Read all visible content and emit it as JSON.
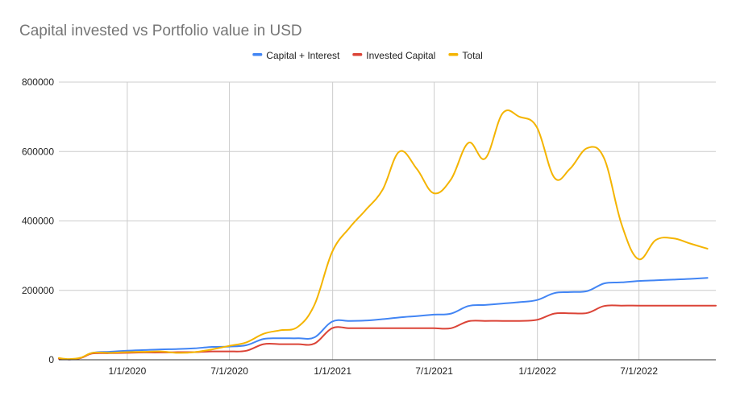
{
  "chart_data": {
    "type": "line",
    "title": "Capital invested vs Portfolio value in USD",
    "xlabel": "",
    "ylabel": "",
    "x_range": [
      "2019-09-01",
      "2022-11-15"
    ],
    "ylim": [
      0,
      800000
    ],
    "y_ticks": [
      {
        "value": 0,
        "label": "0"
      },
      {
        "value": 200000,
        "label": "200000"
      },
      {
        "value": 400000,
        "label": "400000"
      },
      {
        "value": 600000,
        "label": "600000"
      },
      {
        "value": 800000,
        "label": "800000"
      }
    ],
    "x_ticks": [
      {
        "date": "2020-01-01",
        "label": "1/1/2020"
      },
      {
        "date": "2020-07-01",
        "label": "7/1/2020"
      },
      {
        "date": "2021-01-01",
        "label": "1/1/2021"
      },
      {
        "date": "2021-07-01",
        "label": "7/1/2021"
      },
      {
        "date": "2022-01-01",
        "label": "1/1/2022"
      },
      {
        "date": "2022-07-01",
        "label": "7/1/2022"
      }
    ],
    "grid": true,
    "legend_position": "top",
    "series": [
      {
        "name": "Capital + Interest",
        "color": "#4285F4",
        "points": [
          [
            "2019-09-01",
            3000
          ],
          [
            "2019-09-20",
            1000
          ],
          [
            "2019-10-10",
            5000
          ],
          [
            "2019-10-31",
            20000
          ],
          [
            "2019-11-30",
            23000
          ],
          [
            "2019-12-31",
            26000
          ],
          [
            "2020-01-31",
            28000
          ],
          [
            "2020-02-29",
            30000
          ],
          [
            "2020-03-31",
            31000
          ],
          [
            "2020-04-30",
            33000
          ],
          [
            "2020-05-31",
            37000
          ],
          [
            "2020-06-30",
            38000
          ],
          [
            "2020-07-31",
            42000
          ],
          [
            "2020-08-31",
            60000
          ],
          [
            "2020-09-30",
            62000
          ],
          [
            "2020-10-31",
            62000
          ],
          [
            "2020-11-30",
            65000
          ],
          [
            "2020-12-31",
            110000
          ],
          [
            "2021-01-31",
            112000
          ],
          [
            "2021-02-28",
            113000
          ],
          [
            "2021-03-31",
            117000
          ],
          [
            "2021-04-30",
            122000
          ],
          [
            "2021-05-31",
            126000
          ],
          [
            "2021-06-30",
            130000
          ],
          [
            "2021-07-31",
            133000
          ],
          [
            "2021-08-31",
            155000
          ],
          [
            "2021-09-30",
            158000
          ],
          [
            "2021-10-31",
            162000
          ],
          [
            "2021-11-30",
            166000
          ],
          [
            "2021-12-31",
            172000
          ],
          [
            "2022-01-31",
            192000
          ],
          [
            "2022-02-28",
            195000
          ],
          [
            "2022-03-31",
            198000
          ],
          [
            "2022-04-30",
            220000
          ],
          [
            "2022-05-31",
            223000
          ],
          [
            "2022-06-30",
            227000
          ],
          [
            "2022-07-31",
            229000
          ],
          [
            "2022-08-31",
            231000
          ],
          [
            "2022-09-30",
            233000
          ],
          [
            "2022-10-31",
            236000
          ]
        ]
      },
      {
        "name": "Invested Capital",
        "color": "#DB4437",
        "points": [
          [
            "2019-09-01",
            3000
          ],
          [
            "2019-09-20",
            1000
          ],
          [
            "2019-10-10",
            5000
          ],
          [
            "2019-10-31",
            18000
          ],
          [
            "2019-11-30",
            19000
          ],
          [
            "2019-12-31",
            20000
          ],
          [
            "2020-01-31",
            21000
          ],
          [
            "2020-02-29",
            21000
          ],
          [
            "2020-03-31",
            22000
          ],
          [
            "2020-04-30",
            22000
          ],
          [
            "2020-05-31",
            24000
          ],
          [
            "2020-06-30",
            24000
          ],
          [
            "2020-07-31",
            26000
          ],
          [
            "2020-08-31",
            45000
          ],
          [
            "2020-09-30",
            45000
          ],
          [
            "2020-10-31",
            45000
          ],
          [
            "2020-11-30",
            47000
          ],
          [
            "2020-12-31",
            91000
          ],
          [
            "2021-01-31",
            91000
          ],
          [
            "2021-02-28",
            91000
          ],
          [
            "2021-03-31",
            91000
          ],
          [
            "2021-04-30",
            91000
          ],
          [
            "2021-05-31",
            91000
          ],
          [
            "2021-06-30",
            91000
          ],
          [
            "2021-07-31",
            91000
          ],
          [
            "2021-08-31",
            111000
          ],
          [
            "2021-09-30",
            112000
          ],
          [
            "2021-10-31",
            112000
          ],
          [
            "2021-11-30",
            112000
          ],
          [
            "2021-12-31",
            115000
          ],
          [
            "2022-01-31",
            133000
          ],
          [
            "2022-02-28",
            134000
          ],
          [
            "2022-03-31",
            135000
          ],
          [
            "2022-04-30",
            155000
          ],
          [
            "2022-05-31",
            156000
          ],
          [
            "2022-06-30",
            156000
          ],
          [
            "2022-07-31",
            156000
          ],
          [
            "2022-08-31",
            156000
          ],
          [
            "2022-09-30",
            156000
          ],
          [
            "2022-10-31",
            156000
          ],
          [
            "2022-11-15",
            156000
          ]
        ]
      },
      {
        "name": "Total",
        "color": "#F4B400",
        "points": [
          [
            "2019-09-01",
            5000
          ],
          [
            "2019-09-20",
            2000
          ],
          [
            "2019-10-10",
            6000
          ],
          [
            "2019-10-31",
            20000
          ],
          [
            "2019-11-30",
            20000
          ],
          [
            "2019-12-31",
            22000
          ],
          [
            "2020-01-31",
            23000
          ],
          [
            "2020-02-29",
            24000
          ],
          [
            "2020-03-31",
            20000
          ],
          [
            "2020-04-30",
            22000
          ],
          [
            "2020-05-31",
            30000
          ],
          [
            "2020-06-30",
            40000
          ],
          [
            "2020-07-31",
            50000
          ],
          [
            "2020-08-31",
            75000
          ],
          [
            "2020-09-30",
            85000
          ],
          [
            "2020-10-31",
            95000
          ],
          [
            "2020-11-30",
            160000
          ],
          [
            "2020-12-31",
            310000
          ],
          [
            "2021-01-31",
            380000
          ],
          [
            "2021-02-28",
            430000
          ],
          [
            "2021-03-31",
            490000
          ],
          [
            "2021-04-30",
            600000
          ],
          [
            "2021-05-31",
            550000
          ],
          [
            "2021-06-30",
            480000
          ],
          [
            "2021-07-31",
            520000
          ],
          [
            "2021-08-31",
            625000
          ],
          [
            "2021-09-30",
            580000
          ],
          [
            "2021-10-31",
            710000
          ],
          [
            "2021-11-30",
            700000
          ],
          [
            "2021-12-31",
            670000
          ],
          [
            "2022-01-31",
            525000
          ],
          [
            "2022-02-28",
            550000
          ],
          [
            "2022-03-31",
            610000
          ],
          [
            "2022-04-30",
            580000
          ],
          [
            "2022-05-31",
            390000
          ],
          [
            "2022-06-30",
            290000
          ],
          [
            "2022-07-31",
            345000
          ],
          [
            "2022-08-31",
            350000
          ],
          [
            "2022-09-30",
            335000
          ],
          [
            "2022-10-31",
            320000
          ]
        ]
      }
    ]
  }
}
